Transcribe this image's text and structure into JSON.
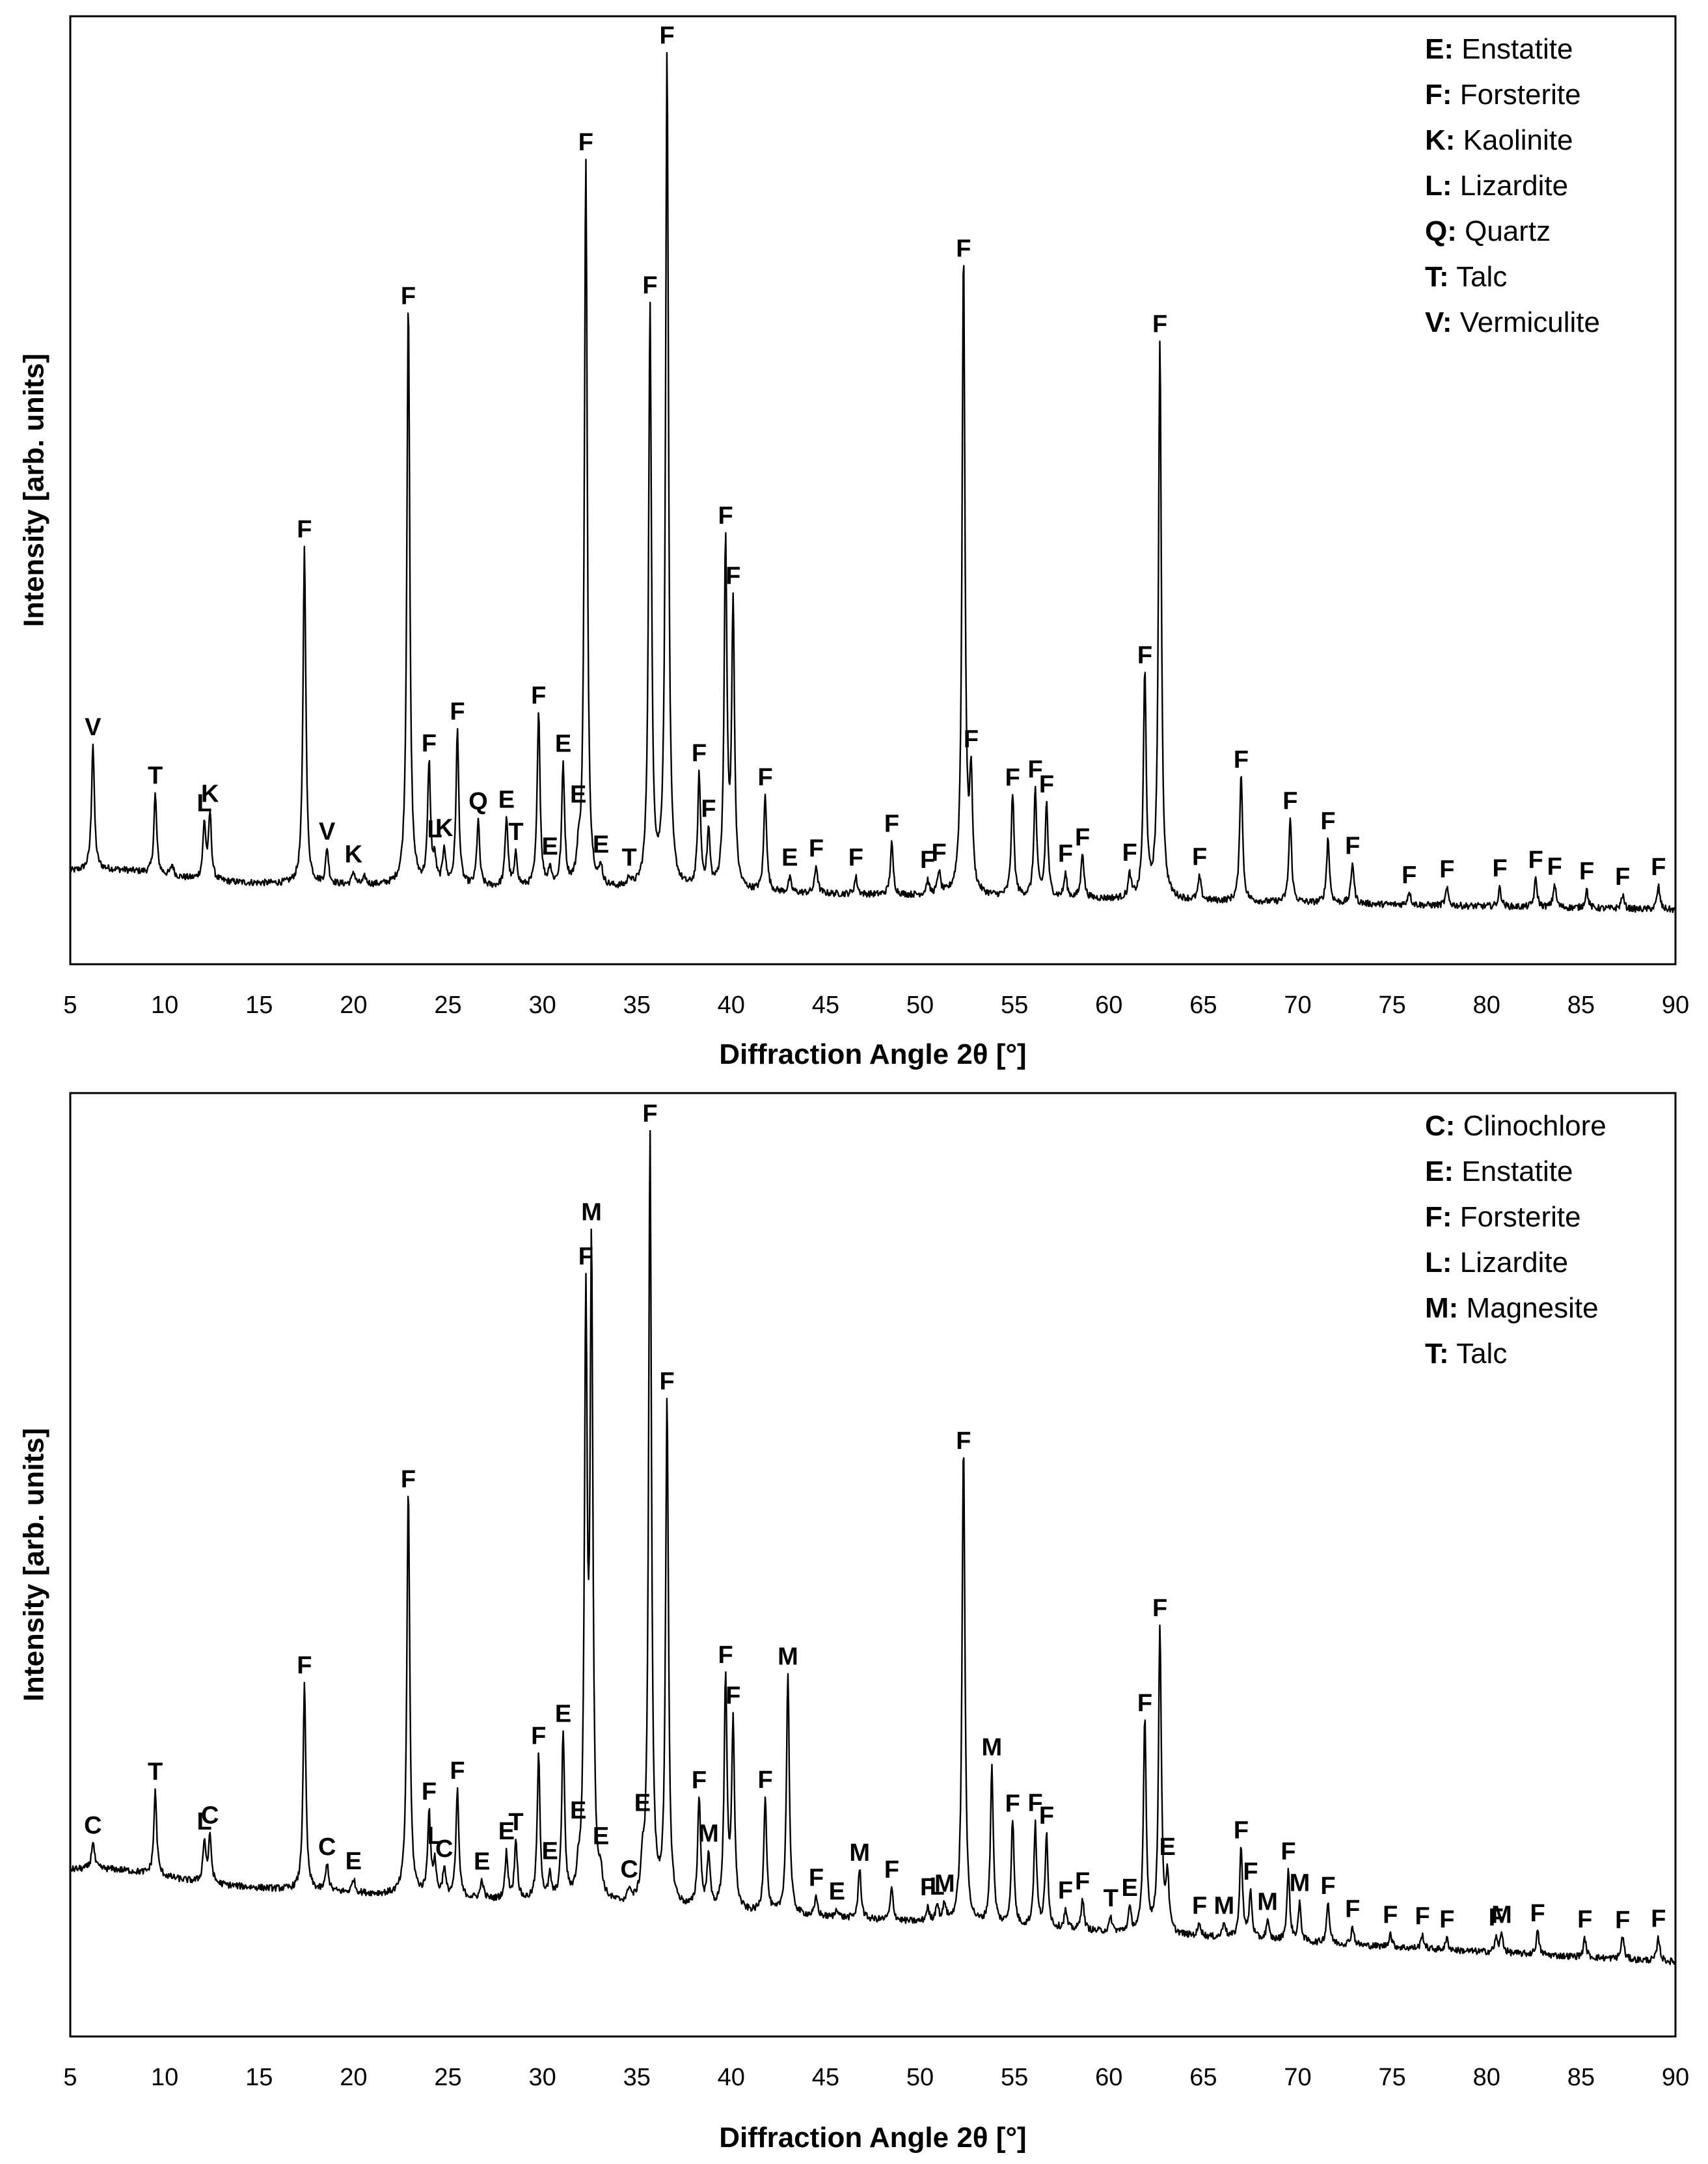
{
  "figure": {
    "line_color": "#000000",
    "frame_color": "#000000",
    "background": "#ffffff"
  },
  "chart_data": [
    {
      "type": "line",
      "title": "",
      "xlabel": "Diffraction Angle 2θ [°]",
      "ylabel": "Intensity [arb. units]",
      "xlim": [
        5,
        90
      ],
      "ylim": [
        0,
        100
      ],
      "xticks": [
        "5",
        "10",
        "15",
        "20",
        "25",
        "30",
        "35",
        "40",
        "45",
        "50",
        "55",
        "60",
        "65",
        "70",
        "75",
        "80",
        "85",
        "90"
      ],
      "grid": false,
      "legend": {
        "position": "top-right",
        "entries": [
          {
            "code": "E:",
            "name": "Enstatite"
          },
          {
            "code": "F:",
            "name": "Forsterite"
          },
          {
            "code": "K:",
            "name": "Kaolinite"
          },
          {
            "code": "L:",
            "name": "Lizardite"
          },
          {
            "code": "Q:",
            "name": "Quartz"
          },
          {
            "code": "T:",
            "name": "Talc"
          },
          {
            "code": "V:",
            "name": "Vermiculite"
          }
        ]
      },
      "baseline": {
        "start": 9.0,
        "end": 5.8
      },
      "peaks": [
        {
          "x": 6.2,
          "h": 13.5,
          "label": "V"
        },
        {
          "x": 9.5,
          "h": 8.5,
          "label": "T"
        },
        {
          "x": 10.4,
          "h": 1.2,
          "label": ""
        },
        {
          "x": 12.1,
          "h": 6.0,
          "label": "L"
        },
        {
          "x": 12.4,
          "h": 7.0,
          "label": "K"
        },
        {
          "x": 17.4,
          "h": 36.0,
          "label": "F"
        },
        {
          "x": 18.6,
          "h": 3.8,
          "label": "V"
        },
        {
          "x": 20.0,
          "h": 1.4,
          "label": "K"
        },
        {
          "x": 20.6,
          "h": 0.8,
          "label": ""
        },
        {
          "x": 22.9,
          "h": 63.0,
          "label": "F"
        },
        {
          "x": 24.0,
          "h": 13.0,
          "label": "F"
        },
        {
          "x": 24.3,
          "h": 2.5,
          "label": "L"
        },
        {
          "x": 24.8,
          "h": 4.0,
          "label": "K"
        },
        {
          "x": 25.5,
          "h": 16.5,
          "label": "F"
        },
        {
          "x": 26.6,
          "h": 7.0,
          "label": "Q"
        },
        {
          "x": 28.1,
          "h": 7.5,
          "label": "E"
        },
        {
          "x": 28.6,
          "h": 3.5,
          "label": "T"
        },
        {
          "x": 29.8,
          "h": 19.0,
          "label": "F"
        },
        {
          "x": 30.4,
          "h": 2.0,
          "label": "E"
        },
        {
          "x": 31.1,
          "h": 13.0,
          "label": "E"
        },
        {
          "x": 31.9,
          "h": 2.5,
          "label": "E"
        },
        {
          "x": 32.3,
          "h": 78.0,
          "label": "F"
        },
        {
          "x": 33.1,
          "h": 2.0,
          "label": "E"
        },
        {
          "x": 34.6,
          "h": 1.0,
          "label": "T"
        },
        {
          "x": 35.7,
          "h": 62.0,
          "label": "F"
        },
        {
          "x": 36.6,
          "h": 90.0,
          "label": "F"
        },
        {
          "x": 38.3,
          "h": 12.0,
          "label": "F"
        },
        {
          "x": 38.8,
          "h": 6.0,
          "label": "F"
        },
        {
          "x": 39.7,
          "h": 37.0,
          "label": "F"
        },
        {
          "x": 40.1,
          "h": 30.0,
          "label": "F"
        },
        {
          "x": 41.8,
          "h": 10.5,
          "label": "F"
        },
        {
          "x": 43.1,
          "h": 1.5,
          "label": "E"
        },
        {
          "x": 44.5,
          "h": 3.0,
          "label": "F"
        },
        {
          "x": 46.6,
          "h": 1.8,
          "label": "F"
        },
        {
          "x": 48.5,
          "h": 5.5,
          "label": "F"
        },
        {
          "x": 50.4,
          "h": 1.5,
          "label": "F"
        },
        {
          "x": 51.0,
          "h": 2.5,
          "label": "F"
        },
        {
          "x": 52.3,
          "h": 69.0,
          "label": "F"
        },
        {
          "x": 52.7,
          "h": 12.0,
          "label": "F"
        },
        {
          "x": 54.9,
          "h": 11.0,
          "label": "F"
        },
        {
          "x": 56.1,
          "h": 11.5,
          "label": "F"
        },
        {
          "x": 56.7,
          "h": 10.0,
          "label": "F"
        },
        {
          "x": 57.7,
          "h": 2.5,
          "label": "F"
        },
        {
          "x": 58.6,
          "h": 5.0,
          "label": "F"
        },
        {
          "x": 61.1,
          "h": 2.5,
          "label": "F"
        },
        {
          "x": 61.9,
          "h": 24.0,
          "label": "F"
        },
        {
          "x": 62.7,
          "h": 60.0,
          "label": "F"
        },
        {
          "x": 64.8,
          "h": 2.5,
          "label": "F"
        },
        {
          "x": 67.0,
          "h": 14.0,
          "label": "F"
        },
        {
          "x": 69.6,
          "h": 9.0,
          "label": "F"
        },
        {
          "x": 71.6,
          "h": 7.0,
          "label": "F"
        },
        {
          "x": 72.9,
          "h": 4.5,
          "label": "F"
        },
        {
          "x": 75.9,
          "h": 1.5,
          "label": "F"
        },
        {
          "x": 77.9,
          "h": 1.8,
          "label": "F"
        },
        {
          "x": 80.7,
          "h": 2.0,
          "label": "F"
        },
        {
          "x": 82.6,
          "h": 3.0,
          "label": "F"
        },
        {
          "x": 83.6,
          "h": 2.5,
          "label": "F"
        },
        {
          "x": 85.3,
          "h": 2.0,
          "label": "F"
        },
        {
          "x": 87.2,
          "h": 1.5,
          "label": "F"
        },
        {
          "x": 89.1,
          "h": 2.5,
          "label": "F"
        }
      ]
    },
    {
      "type": "line",
      "title": "",
      "xlabel": "Diffraction Angle 2θ [°]",
      "ylabel": "Intensity [arb. units]",
      "xlim": [
        5,
        90
      ],
      "ylim": [
        0,
        100
      ],
      "xticks": [
        "5",
        "10",
        "15",
        "20",
        "25",
        "30",
        "35",
        "40",
        "45",
        "50",
        "55",
        "60",
        "65",
        "70",
        "75",
        "80",
        "85",
        "90"
      ],
      "grid": false,
      "legend": {
        "position": "top-right",
        "entries": [
          {
            "code": "C:",
            "name": "Clinochlore"
          },
          {
            "code": "E:",
            "name": "Enstatite"
          },
          {
            "code": "F:",
            "name": "Forsterite"
          },
          {
            "code": "L:",
            "name": "Lizardite"
          },
          {
            "code": "M:",
            "name": "Magnesite"
          },
          {
            "code": "T:",
            "name": "Talc"
          }
        ]
      },
      "baseline": {
        "start": 17.0,
        "end": 8.0
      },
      "peaks": [
        {
          "x": 6.2,
          "h": 3.0,
          "label": "C"
        },
        {
          "x": 9.5,
          "h": 9.0,
          "label": "T"
        },
        {
          "x": 12.1,
          "h": 4.5,
          "label": "L"
        },
        {
          "x": 12.4,
          "h": 5.0,
          "label": "C"
        },
        {
          "x": 17.4,
          "h": 22.0,
          "label": "F"
        },
        {
          "x": 18.6,
          "h": 3.0,
          "label": "C"
        },
        {
          "x": 20.0,
          "h": 1.5,
          "label": "E"
        },
        {
          "x": 22.9,
          "h": 44.0,
          "label": "F"
        },
        {
          "x": 24.0,
          "h": 9.0,
          "label": "F"
        },
        {
          "x": 24.3,
          "h": 3.5,
          "label": "L"
        },
        {
          "x": 24.8,
          "h": 3.0,
          "label": "C"
        },
        {
          "x": 25.5,
          "h": 11.5,
          "label": "F"
        },
        {
          "x": 26.8,
          "h": 2.0,
          "label": "E"
        },
        {
          "x": 28.1,
          "h": 5.0,
          "label": "E"
        },
        {
          "x": 28.6,
          "h": 6.5,
          "label": "T"
        },
        {
          "x": 29.8,
          "h": 15.5,
          "label": "F"
        },
        {
          "x": 30.4,
          "h": 2.5,
          "label": "E"
        },
        {
          "x": 31.1,
          "h": 18.0,
          "label": "E"
        },
        {
          "x": 31.9,
          "h": 2.0,
          "label": "E"
        },
        {
          "x": 32.3,
          "h": 62.0,
          "label": "F"
        },
        {
          "x": 32.6,
          "h": 68.0,
          "label": "M"
        },
        {
          "x": 33.1,
          "h": 2.0,
          "label": "E"
        },
        {
          "x": 34.6,
          "h": 1.5,
          "label": "C"
        },
        {
          "x": 35.3,
          "h": 3.5,
          "label": "E"
        },
        {
          "x": 35.7,
          "h": 83.0,
          "label": "F"
        },
        {
          "x": 36.6,
          "h": 54.0,
          "label": "F"
        },
        {
          "x": 38.3,
          "h": 12.0,
          "label": "F"
        },
        {
          "x": 38.8,
          "h": 6.0,
          "label": "M"
        },
        {
          "x": 39.7,
          "h": 25.0,
          "label": "F"
        },
        {
          "x": 40.1,
          "h": 20.0,
          "label": "F"
        },
        {
          "x": 41.8,
          "h": 12.5,
          "label": "F"
        },
        {
          "x": 43.0,
          "h": 26.0,
          "label": "M"
        },
        {
          "x": 44.5,
          "h": 2.0,
          "label": "F"
        },
        {
          "x": 45.6,
          "h": 1.0,
          "label": "E"
        },
        {
          "x": 46.8,
          "h": 5.5,
          "label": "M"
        },
        {
          "x": 48.5,
          "h": 3.5,
          "label": "F"
        },
        {
          "x": 50.4,
          "h": 1.5,
          "label": "F"
        },
        {
          "x": 50.9,
          "h": 2.0,
          "label": "L"
        },
        {
          "x": 51.3,
          "h": 2.0,
          "label": "M"
        },
        {
          "x": 52.3,
          "h": 52.0,
          "label": "F"
        },
        {
          "x": 53.8,
          "h": 17.0,
          "label": "M"
        },
        {
          "x": 54.9,
          "h": 11.5,
          "label": "F"
        },
        {
          "x": 56.1,
          "h": 11.0,
          "label": "F"
        },
        {
          "x": 56.7,
          "h": 10.0,
          "label": "F"
        },
        {
          "x": 57.7,
          "h": 2.0,
          "label": "F"
        },
        {
          "x": 58.6,
          "h": 3.5,
          "label": "F"
        },
        {
          "x": 60.1,
          "h": 1.5,
          "label": "T"
        },
        {
          "x": 61.1,
          "h": 2.5,
          "label": "E"
        },
        {
          "x": 61.9,
          "h": 23.0,
          "label": "F"
        },
        {
          "x": 62.7,
          "h": 33.0,
          "label": "F"
        },
        {
          "x": 63.1,
          "h": 6.0,
          "label": "E"
        },
        {
          "x": 64.8,
          "h": 1.5,
          "label": "F"
        },
        {
          "x": 66.1,
          "h": 1.8,
          "label": "M"
        },
        {
          "x": 67.0,
          "h": 10.0,
          "label": "F"
        },
        {
          "x": 67.5,
          "h": 5.0,
          "label": "F"
        },
        {
          "x": 68.4,
          "h": 2.0,
          "label": "M"
        },
        {
          "x": 69.5,
          "h": 7.5,
          "label": "F"
        },
        {
          "x": 70.1,
          "h": 4.0,
          "label": "M"
        },
        {
          "x": 71.6,
          "h": 4.5,
          "label": "F"
        },
        {
          "x": 72.9,
          "h": 2.0,
          "label": "F"
        },
        {
          "x": 74.9,
          "h": 1.5,
          "label": "F"
        },
        {
          "x": 76.6,
          "h": 1.5,
          "label": "F"
        },
        {
          "x": 77.9,
          "h": 1.2,
          "label": "F"
        },
        {
          "x": 80.5,
          "h": 1.5,
          "label": "F"
        },
        {
          "x": 80.8,
          "h": 2.0,
          "label": "M"
        },
        {
          "x": 82.7,
          "h": 2.5,
          "label": "F"
        },
        {
          "x": 85.2,
          "h": 2.0,
          "label": "F"
        },
        {
          "x": 87.2,
          "h": 2.5,
          "label": "F"
        },
        {
          "x": 89.1,
          "h": 2.5,
          "label": "F"
        }
      ]
    }
  ]
}
